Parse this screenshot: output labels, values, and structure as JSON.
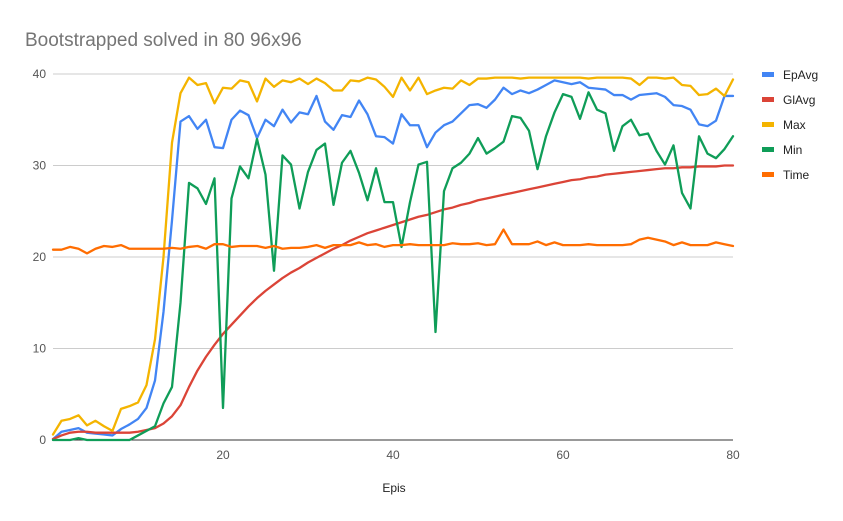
{
  "chart_data": {
    "type": "line",
    "title": "Bootstrapped solved in 80  96x96",
    "xlabel": "Epis",
    "ylabel": "",
    "xlim": [
      0,
      80
    ],
    "ylim": [
      0,
      40
    ],
    "xticks": [
      20,
      40,
      60,
      80
    ],
    "yticks": [
      0,
      10,
      20,
      30,
      40
    ],
    "grid": true,
    "legend": "right",
    "x": [
      0,
      1,
      2,
      3,
      4,
      5,
      6,
      7,
      8,
      9,
      10,
      11,
      12,
      13,
      14,
      15,
      16,
      17,
      18,
      19,
      20,
      21,
      22,
      23,
      24,
      25,
      26,
      27,
      28,
      29,
      30,
      31,
      32,
      33,
      34,
      35,
      36,
      37,
      38,
      39,
      40,
      41,
      42,
      43,
      44,
      45,
      46,
      47,
      48,
      49,
      50,
      51,
      52,
      53,
      54,
      55,
      56,
      57,
      58,
      59,
      60,
      61,
      62,
      63,
      64,
      65,
      66,
      67,
      68,
      69,
      70,
      71,
      72,
      73,
      74,
      75,
      76,
      77,
      78,
      79,
      80
    ],
    "series": [
      {
        "name": "EpAvg",
        "color": "#4285f4",
        "values": [
          0.1,
          0.9,
          1.1,
          1.3,
          0.8,
          0.7,
          0.6,
          0.5,
          1.2,
          1.7,
          2.3,
          3.5,
          6.5,
          14,
          24,
          34.8,
          35.4,
          34,
          35,
          32,
          31.9,
          35,
          36,
          35.5,
          33,
          35,
          34.3,
          36.1,
          34.7,
          35.8,
          35.6,
          37.6,
          34.8,
          33.9,
          35.5,
          35.3,
          37.1,
          35.6,
          33.2,
          33.1,
          32.4,
          35.6,
          34.4,
          34.4,
          32,
          33.6,
          34.4,
          34.8,
          35.7,
          36.6,
          36.7,
          36.3,
          37.2,
          38.5,
          37.8,
          38.2,
          37.9,
          38.3,
          38.8,
          39.3,
          39.1,
          38.9,
          39.1,
          38.5,
          38.4,
          38.3,
          37.7,
          37.7,
          37.2,
          37.7,
          37.8,
          37.9,
          37.5,
          36.6,
          36.5,
          36.1,
          34.5,
          34.3,
          34.9,
          37.6,
          37.6
        ]
      },
      {
        "name": "GlAvg",
        "color": "#db4437",
        "values": [
          0.1,
          0.5,
          0.8,
          0.9,
          0.9,
          0.8,
          0.8,
          0.8,
          0.8,
          0.8,
          0.9,
          1.1,
          1.3,
          1.8,
          2.6,
          3.8,
          5.8,
          7.6,
          9.1,
          10.4,
          11.6,
          12.6,
          13.6,
          14.6,
          15.5,
          16.3,
          17,
          17.7,
          18.3,
          18.8,
          19.4,
          19.9,
          20.4,
          20.9,
          21.3,
          21.8,
          22.2,
          22.6,
          22.9,
          23.2,
          23.5,
          23.8,
          24.1,
          24.4,
          24.6,
          24.9,
          25.2,
          25.4,
          25.7,
          25.9,
          26.2,
          26.4,
          26.6,
          26.8,
          27,
          27.2,
          27.4,
          27.6,
          27.8,
          28,
          28.2,
          28.4,
          28.5,
          28.7,
          28.8,
          29,
          29.1,
          29.2,
          29.3,
          29.4,
          29.5,
          29.6,
          29.7,
          29.7,
          29.8,
          29.8,
          29.9,
          29.9,
          29.9,
          30,
          30
        ]
      },
      {
        "name": "Max",
        "color": "#f4b400",
        "values": [
          0.6,
          2.1,
          2.3,
          2.7,
          1.6,
          2.1,
          1.5,
          1,
          3.4,
          3.7,
          4.1,
          6,
          11,
          20,
          32.5,
          37.9,
          39.6,
          38.8,
          39,
          36.8,
          38.5,
          38.4,
          39.3,
          39.1,
          37,
          39.5,
          38.6,
          39.3,
          39.1,
          39.5,
          38.9,
          39.5,
          39,
          38.2,
          38.2,
          39.3,
          39.2,
          39.6,
          39.4,
          38.6,
          37.5,
          39.6,
          38.2,
          39.6,
          37.8,
          38.2,
          38.5,
          38.4,
          39.3,
          38.8,
          39.5,
          39.5,
          39.6,
          39.6,
          39.6,
          39.5,
          39.6,
          39.6,
          39.6,
          39.6,
          39.6,
          39.6,
          39.6,
          39.5,
          39.6,
          39.6,
          39.6,
          39.6,
          39.5,
          38.8,
          39.6,
          39.6,
          39.5,
          39.6,
          38.8,
          38.7,
          37.7,
          37.8,
          38.4,
          37.6,
          39.4
        ]
      },
      {
        "name": "Min",
        "color": "#0f9d58",
        "values": [
          0,
          0,
          0,
          0.2,
          0,
          0,
          0,
          0,
          0,
          0,
          0.5,
          1,
          1.5,
          4,
          5.8,
          15,
          28.1,
          27.5,
          25.8,
          28.6,
          3.5,
          26.4,
          29.9,
          28.6,
          32.9,
          29,
          18.5,
          31.1,
          30.1,
          25.3,
          29.3,
          31.7,
          32.4,
          25.7,
          30.3,
          31.6,
          29.2,
          26.2,
          29.7,
          26,
          26,
          21.1,
          26,
          30.1,
          30.4,
          11.8,
          27.2,
          29.7,
          30.3,
          31.3,
          33,
          31.3,
          31.9,
          32.6,
          35.4,
          35.2,
          33.8,
          29.6,
          33.2,
          35.8,
          37.8,
          37.5,
          35.1,
          38,
          36.1,
          35.7,
          31.6,
          34.3,
          35,
          33.3,
          33.5,
          31.6,
          30.1,
          32.2,
          27,
          25.3,
          33.2,
          31.3,
          30.8,
          31.8,
          33.2
        ]
      },
      {
        "name": "Time",
        "color": "#ff6d01",
        "values": [
          20.8,
          20.8,
          21.1,
          20.9,
          20.4,
          20.9,
          21.2,
          21.1,
          21.3,
          20.9,
          20.9,
          20.9,
          20.9,
          20.9,
          21,
          20.9,
          21.1,
          21.2,
          20.9,
          21.4,
          21.4,
          21.1,
          21.2,
          21.2,
          21.2,
          21,
          21.2,
          20.9,
          21,
          21,
          21.1,
          21.3,
          21,
          21.3,
          21.3,
          21.3,
          21.6,
          21.3,
          21.4,
          21.1,
          21.3,
          21.3,
          21.4,
          21.3,
          21.3,
          21.3,
          21.3,
          21.5,
          21.4,
          21.4,
          21.5,
          21.3,
          21.4,
          23,
          21.4,
          21.4,
          21.4,
          21.7,
          21.3,
          21.6,
          21.3,
          21.3,
          21.3,
          21.4,
          21.3,
          21.3,
          21.3,
          21.3,
          21.4,
          21.9,
          22.1,
          21.9,
          21.7,
          21.3,
          21.6,
          21.3,
          21.3,
          21.3,
          21.6,
          21.4,
          21.2
        ]
      }
    ]
  }
}
